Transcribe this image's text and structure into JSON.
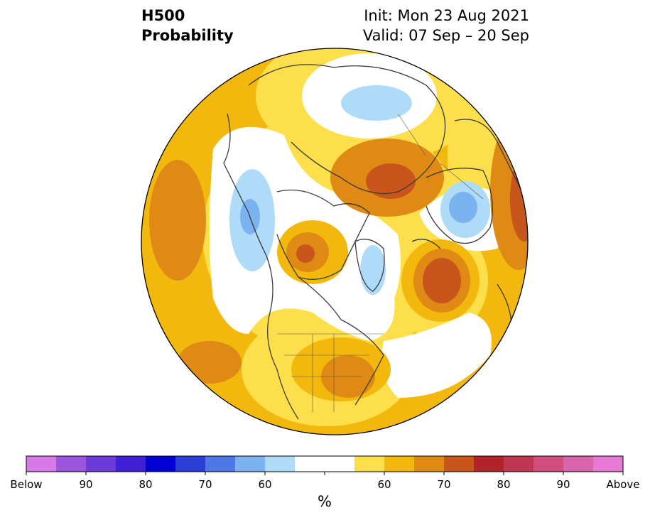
{
  "title": {
    "left_line1": "H500",
    "left_line2": "Probability",
    "right_line1": "Init: Mon 23 Aug 2021",
    "right_line2": "Valid: 07 Sep – 20 Sep"
  },
  "colorbar": {
    "unit": "%",
    "colors": [
      "#d67ae8",
      "#9b55dd",
      "#6b3ad9",
      "#3f1ed6",
      "#0000d6",
      "#2a3ed6",
      "#4e78e6",
      "#7bb2f0",
      "#aedcf8",
      "#ffffff",
      "#ffffff",
      "#fddf4b",
      "#f3b80e",
      "#df8a14",
      "#c8561c",
      "#b1222a",
      "#bf3650",
      "#cf4e7e",
      "#d864ac",
      "#e77ad6"
    ],
    "labels": [
      "Below",
      "90",
      "80",
      "70",
      "60",
      "60",
      "70",
      "80",
      "90",
      "Above"
    ]
  },
  "legend_colors": {
    "below_light": "#aedcf8",
    "below_mid": "#7bb2f0",
    "above_light": "#fddf4b",
    "above_mid": "#f3b80e",
    "above_strong": "#df8a14",
    "above_max": "#c8561c"
  }
}
